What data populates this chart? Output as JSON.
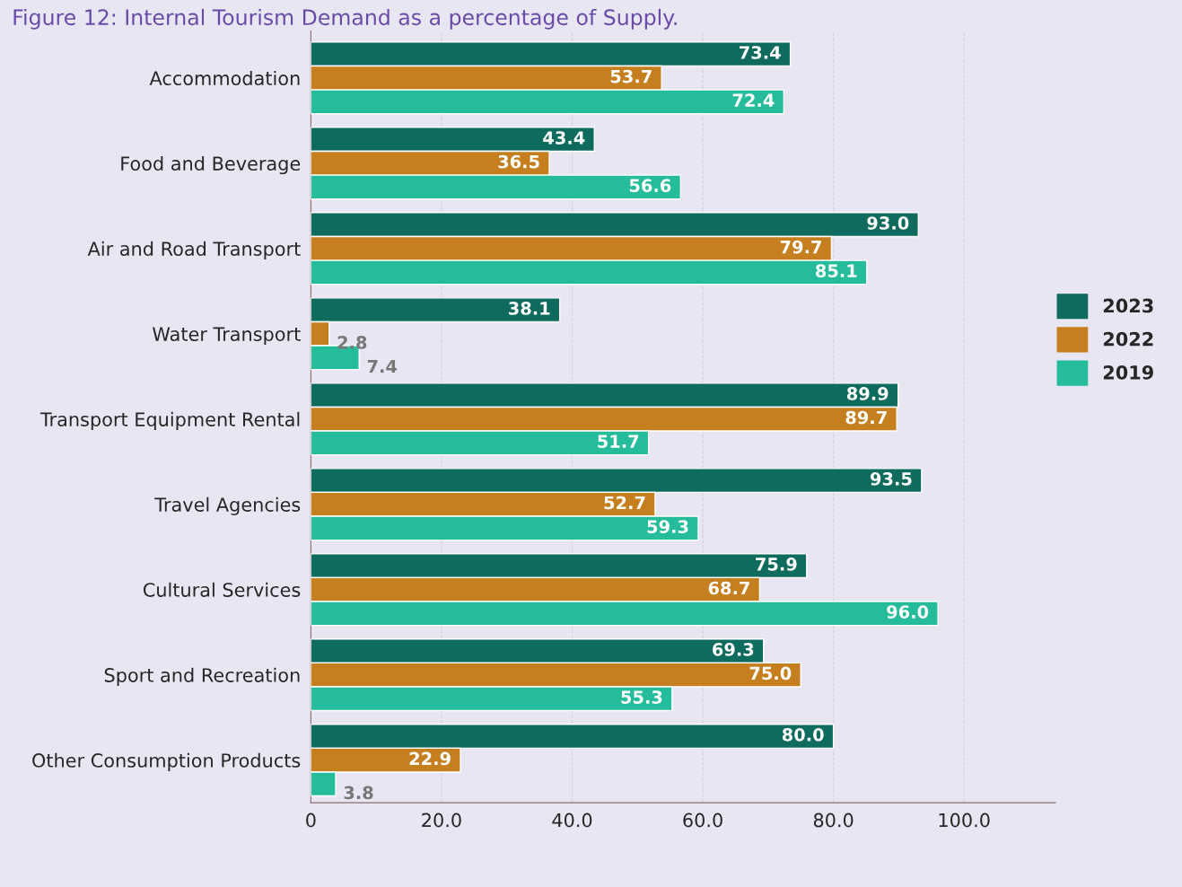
{
  "chart_data": {
    "type": "bar",
    "orientation": "horizontal",
    "title": "Figure 12: Internal Tourism Demand as a percentage of Supply.",
    "categories": [
      "Accommodation",
      "Food and Beverage",
      "Air and Road Transport",
      "Water Transport",
      "Transport Equipment Rental",
      "Travel Agencies",
      "Cultural Services",
      "Sport and Recreation",
      "Other Consumption Products"
    ],
    "series": [
      {
        "name": "2023",
        "color": "#106b5f",
        "values": [
          73.4,
          43.4,
          93.0,
          38.1,
          89.9,
          93.5,
          75.9,
          69.3,
          80.0
        ],
        "value_labels": [
          "73.4",
          "43.4",
          "93.0",
          "38.1",
          "89.9",
          "93.5",
          "75.9",
          "69.3",
          "80.0"
        ]
      },
      {
        "name": "2022",
        "color": "#c57f1f",
        "values": [
          53.7,
          36.5,
          79.7,
          2.8,
          89.7,
          52.7,
          68.7,
          75.0,
          22.9
        ],
        "value_labels": [
          "53.7",
          "36.5",
          "79.7",
          "2.8",
          "89.7",
          "52.7",
          "68.7",
          "75.0",
          "22.9"
        ]
      },
      {
        "name": "2019",
        "color": "#25bc9b",
        "values": [
          72.4,
          56.6,
          85.1,
          7.4,
          51.7,
          59.3,
          96.0,
          55.3,
          3.8
        ],
        "value_labels": [
          "72.4",
          "56.6",
          "85.1",
          "7.4",
          "51.7",
          "59.3",
          "96.0",
          "55.3",
          "3.8"
        ]
      }
    ],
    "xlim": [
      0,
      114
    ],
    "xticks": [
      0,
      {
        "value": 20,
        "label": "20.0"
      },
      {
        "value": 40,
        "label": "40.0"
      },
      {
        "value": 60,
        "label": "60.0"
      },
      {
        "value": 80,
        "label": "80.0"
      },
      {
        "value": 100,
        "label": "100.0"
      }
    ],
    "grid": "x",
    "legend": "right"
  }
}
